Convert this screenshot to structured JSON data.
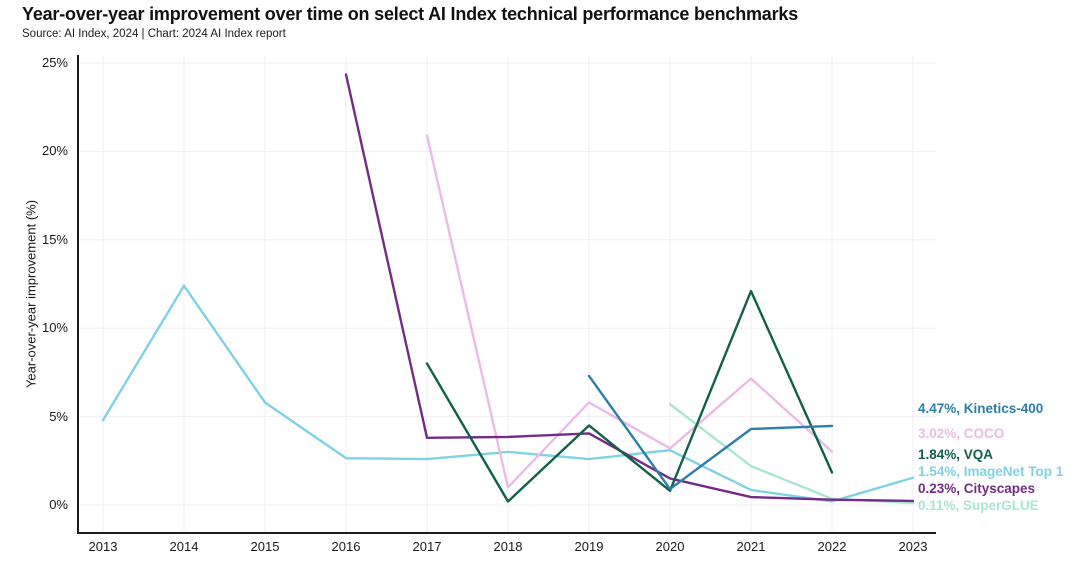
{
  "header": {
    "title": "Year-over-year improvement over time on select AI Index technical performance benchmarks",
    "subtitle": "Source: AI Index, 2024 | Chart: 2024 AI Index report"
  },
  "chart_data": {
    "type": "line",
    "title": "Year-over-year improvement over time on select AI Index technical performance benchmarks",
    "xlabel": "",
    "ylabel": "Year-over-year improvement (%)",
    "xlim": [
      2013,
      2023
    ],
    "ylim": [
      0,
      25
    ],
    "x_ticks": [
      2013,
      2014,
      2015,
      2016,
      2017,
      2018,
      2019,
      2020,
      2021,
      2022,
      2023
    ],
    "y_ticks": [
      0,
      5,
      10,
      15,
      20,
      25
    ],
    "y_tick_suffix": "%",
    "grid": true,
    "legend_position": "right",
    "series": [
      {
        "name": "Kinetics-400",
        "label": "4.47%, Kinetics-400",
        "color": "#2d7ea8",
        "z": 6,
        "points": [
          [
            2019,
            7.3
          ],
          [
            2020,
            0.9
          ],
          [
            2021,
            4.3
          ],
          [
            2022,
            4.47
          ]
        ]
      },
      {
        "name": "COCO",
        "label": "3.02%, COCO",
        "color": "#ecbae6",
        "z": 2,
        "points": [
          [
            2017,
            20.9
          ],
          [
            2018,
            1.0
          ],
          [
            2019,
            5.8
          ],
          [
            2020,
            3.2
          ],
          [
            2021,
            7.15
          ],
          [
            2022,
            3.02
          ]
        ]
      },
      {
        "name": "VQA",
        "label": "1.84%, VQA",
        "color": "#11604b",
        "z": 5,
        "points": [
          [
            2017,
            8.0
          ],
          [
            2018,
            0.2
          ],
          [
            2019,
            4.5
          ],
          [
            2020,
            0.8
          ],
          [
            2021,
            12.1
          ],
          [
            2022,
            1.84
          ]
        ]
      },
      {
        "name": "ImageNet Top 1",
        "label": "1.54%, ImageNet Top 1",
        "color": "#7fd2e6",
        "z": 1,
        "points": [
          [
            2013,
            4.8
          ],
          [
            2014,
            12.4
          ],
          [
            2015,
            5.8
          ],
          [
            2016,
            2.65
          ],
          [
            2017,
            2.6
          ],
          [
            2018,
            3.0
          ],
          [
            2019,
            2.6
          ],
          [
            2020,
            3.1
          ],
          [
            2021,
            0.85
          ],
          [
            2022,
            0.2
          ],
          [
            2023,
            1.54
          ]
        ]
      },
      {
        "name": "Cityscapes",
        "label": "0.23%, Cityscapes",
        "color": "#732c85",
        "z": 4,
        "points": [
          [
            2016,
            24.35
          ],
          [
            2017,
            3.8
          ],
          [
            2018,
            3.85
          ],
          [
            2019,
            4.05
          ],
          [
            2020,
            1.5
          ],
          [
            2021,
            0.45
          ],
          [
            2022,
            0.3
          ],
          [
            2023,
            0.23
          ]
        ]
      },
      {
        "name": "SuperGLUE",
        "label": "0.11%, SuperGLUE",
        "color": "#a7e6d4",
        "z": 3,
        "points": [
          [
            2020,
            5.7
          ],
          [
            2021,
            2.2
          ],
          [
            2022,
            0.35
          ],
          [
            2023,
            0.11
          ]
        ]
      }
    ]
  }
}
